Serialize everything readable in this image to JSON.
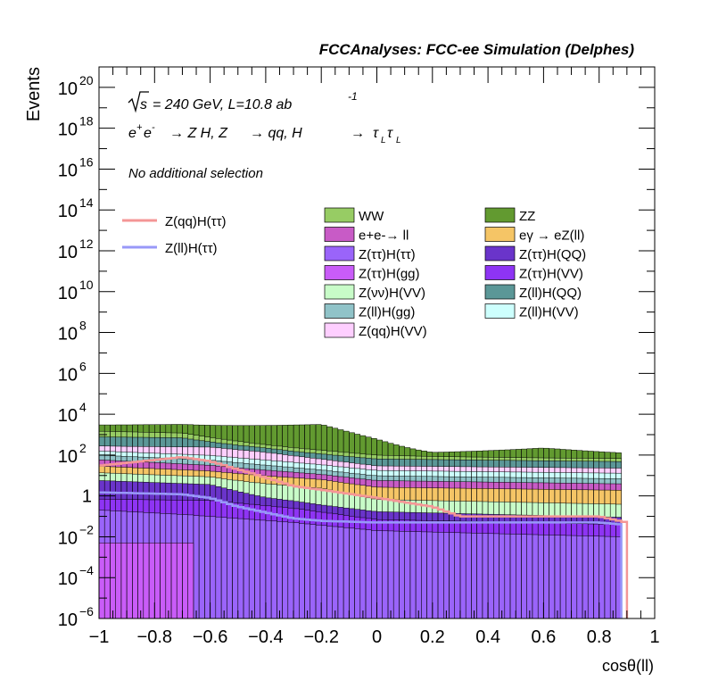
{
  "header": {
    "title": "FCCAnalyses: FCC-ee Simulation (Delphes)"
  },
  "annotations": {
    "sqrt_s": "s",
    "energy_lumi": "= 240 GeV, L=10.8 ab",
    "lumi_exp": "-1",
    "process_lead": "e",
    "process_e_sup1": "+",
    "process_e2": "e",
    "process_e_sup2": "-",
    "process_arrow1": "→ Z H, Z",
    "process_arrow2": "→ qq, H",
    "process_arrow3": "→",
    "process_tau": "τ",
    "process_sub_L": "L",
    "process_tau2": "τ",
    "process_sub_L2": "L",
    "selection": "No additional selection"
  },
  "chart_data": {
    "type": "histogram-stacked-log",
    "xlabel": "cosθ(ll)",
    "ylabel": "Events",
    "xlim": [
      -1,
      1
    ],
    "ylim": [
      1e-06,
      1e+21
    ],
    "log_y": true,
    "grid": false,
    "xticks": [
      "−1",
      "−0.8",
      "−0.6",
      "−0.4",
      "−0.2",
      "0",
      "0.2",
      "0.4",
      "0.6",
      "0.8",
      "1"
    ],
    "yticks": [
      {
        "base": "10",
        "exp": "−6"
      },
      {
        "base": "10",
        "exp": "−4"
      },
      {
        "base": "10",
        "exp": "−2"
      },
      {
        "base": "1",
        "exp": ""
      },
      {
        "base": "10",
        "exp": "2"
      },
      {
        "base": "10",
        "exp": "4"
      },
      {
        "base": "10",
        "exp": "6"
      },
      {
        "base": "10",
        "exp": "8"
      },
      {
        "base": "10",
        "exp": "10"
      },
      {
        "base": "10",
        "exp": "12"
      },
      {
        "base": "10",
        "exp": "14"
      },
      {
        "base": "10",
        "exp": "16"
      },
      {
        "base": "10",
        "exp": "18"
      },
      {
        "base": "10",
        "exp": "20"
      }
    ],
    "stack_profiles": [
      {
        "name": "ZZ",
        "color": "#629a30",
        "x": [
          -1,
          -0.7,
          -0.4,
          -0.2,
          0.0,
          0.2,
          0.6,
          0.88
        ],
        "y": [
          1500,
          2000,
          2500,
          3000,
          500,
          50,
          150,
          60
        ]
      },
      {
        "name": "WW",
        "color": "#97cc64",
        "x": [
          -1,
          -0.7,
          -0.4,
          -0.2,
          0.0,
          0.2,
          0.6,
          0.88
        ],
        "y": [
          700,
          500,
          100,
          60,
          35,
          25,
          20,
          20
        ]
      },
      {
        "name": "Z(ll)H(QQ)",
        "color": "#5b9797",
        "x": [
          -1,
          -0.7,
          -0.6,
          -0.5,
          -0.3,
          0.0,
          0.88
        ],
        "y": [
          500,
          450,
          200,
          120,
          60,
          35,
          25
        ]
      },
      {
        "name": "Z(qq)H(VV)",
        "color": "#fecfff",
        "x": [
          -1,
          -0.6,
          -0.4,
          -0.2,
          0.0,
          0.88
        ],
        "y": [
          120,
          150,
          80,
          30,
          12,
          10
        ]
      },
      {
        "name": "Z(ll)H(VV)",
        "color": "#cdfffd",
        "x": [
          -1,
          -0.6,
          -0.4,
          -0.2,
          0.0,
          0.88
        ],
        "y": [
          60,
          40,
          25,
          15,
          8,
          6
        ]
      },
      {
        "name": "Z(ll)H(gg)",
        "color": "#90c3c8",
        "x": [
          -1,
          -0.6,
          -0.3,
          0.0,
          0.88
        ],
        "y": [
          40,
          25,
          10,
          4,
          3
        ]
      },
      {
        "name": "e+e-→ ll",
        "color": "#c85bc6",
        "x": [
          -1,
          -0.6,
          -0.2,
          0.0,
          0.88
        ],
        "y": [
          30,
          15,
          5,
          3,
          2
        ]
      },
      {
        "name": "eγ → eZ(ll)",
        "color": "#f5c566",
        "x": [
          -1,
          -0.6,
          -0.2,
          0.0,
          0.88
        ],
        "y": [
          15,
          8,
          4,
          2,
          1.5
        ]
      },
      {
        "name": "Z(νν)H(VV)",
        "color": "#c8fcc8",
        "x": [
          -1,
          -0.6,
          -0.2,
          0.0,
          0.88
        ],
        "y": [
          8,
          5,
          2,
          0.5,
          0.3
        ]
      },
      {
        "name": "Z(ττ)H(QQ)",
        "color": "#6a34ca",
        "x": [
          -1,
          -0.6,
          -0.4,
          -0.2,
          0.0,
          0.88
        ],
        "y": [
          5,
          3,
          0.5,
          0.2,
          0.1,
          0.05
        ]
      },
      {
        "name": "Z(ττ)H(VV)",
        "color": "#8e34f4",
        "x": [
          -1,
          -0.6,
          -0.3,
          0.0,
          0.88
        ],
        "y": [
          0.5,
          0.5,
          0.2,
          0.05,
          0.03
        ]
      },
      {
        "name": "Z(ττ)H(ττ)",
        "color": "#9a64fa",
        "x": [
          -1,
          -0.6,
          -0.3,
          0.0,
          0.88
        ],
        "y": [
          0.2,
          0.1,
          0.05,
          0.02,
          0.01
        ]
      },
      {
        "name": "Z(ττ)H(gg)",
        "color": "#c95cf8",
        "x": [
          -1,
          -0.65
        ],
        "y": [
          0.005,
          0.005
        ]
      }
    ],
    "signal_profiles": [
      {
        "name": "Z(qq)H(ττ)",
        "color": "#f49696",
        "x": [
          -1,
          -0.7,
          -0.6,
          -0.5,
          -0.4,
          -0.3,
          -0.2,
          0.0,
          0.2,
          0.3,
          0.4,
          0.5,
          0.6,
          0.8,
          0.9
        ],
        "y": [
          30,
          80,
          50,
          20,
          8,
          3,
          2,
          0.8,
          0.3,
          0.1,
          0.1,
          0.1,
          0.1,
          0.1,
          0.05
        ]
      },
      {
        "name": "Z(ll)H(ττ)",
        "color": "#9898f8",
        "x": [
          -1,
          -0.7,
          -0.6,
          -0.5,
          -0.3,
          -0.2,
          0.0,
          0.2,
          0.4,
          0.6,
          0.8,
          0.88
        ],
        "y": [
          1.5,
          1.2,
          0.8,
          0.3,
          0.08,
          0.06,
          0.05,
          0.05,
          0.05,
          0.05,
          0.05,
          0.04
        ]
      }
    ],
    "legend_signal": [
      {
        "name": "Z(qq)H(ττ)",
        "color": "#f49696"
      },
      {
        "name": "Z(ll)H(ττ)",
        "color": "#9898f8"
      }
    ],
    "legend_background": [
      {
        "name": "WW",
        "color": "#97cc64"
      },
      {
        "name": "ZZ",
        "color": "#629a30"
      },
      {
        "name": "e+e-→ ll",
        "color": "#c85bc6"
      },
      {
        "name": "eγ → eZ(ll)",
        "color": "#f5c566"
      },
      {
        "name": "Z(ττ)H(ττ)",
        "color": "#9a64fa"
      },
      {
        "name": "Z(ττ)H(QQ)",
        "color": "#6a34ca"
      },
      {
        "name": "Z(ττ)H(gg)",
        "color": "#c95cf8"
      },
      {
        "name": "Z(ττ)H(VV)",
        "color": "#8e34f4"
      },
      {
        "name": "Z(νν)H(VV)",
        "color": "#c8fcc8"
      },
      {
        "name": "Z(ll)H(QQ)",
        "color": "#5b9797"
      },
      {
        "name": "Z(ll)H(gg)",
        "color": "#90c3c8"
      },
      {
        "name": "Z(ll)H(VV)",
        "color": "#cdfffd"
      },
      {
        "name": "Z(qq)H(VV)",
        "color": "#fecfff"
      }
    ]
  }
}
